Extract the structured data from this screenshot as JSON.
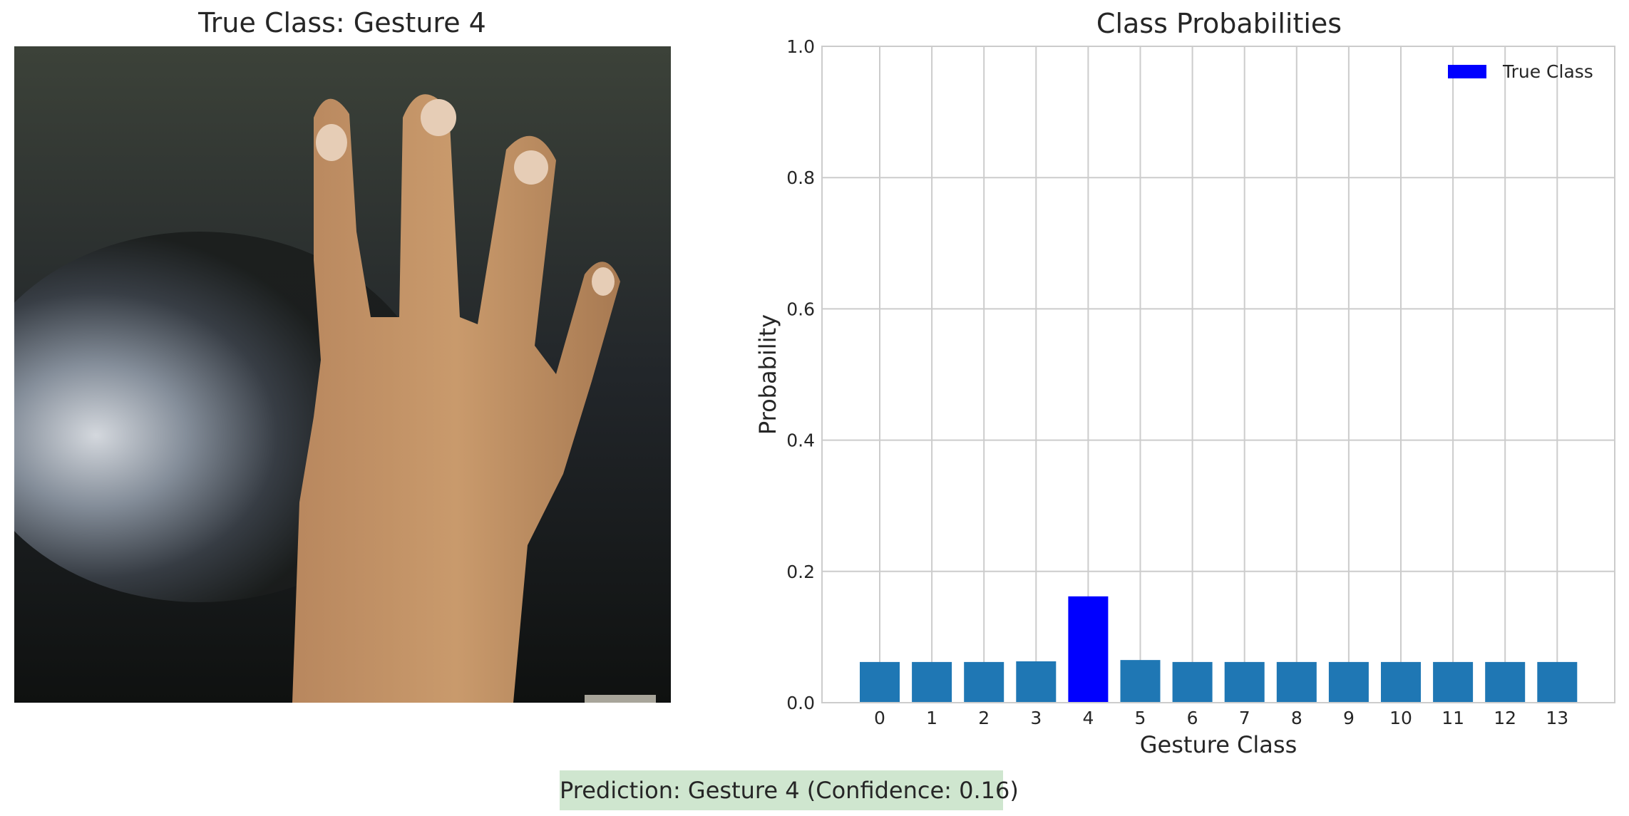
{
  "image_panel": {
    "title": "True Class: Gesture 4",
    "image_description": "photo of a hand with fingers spread on a dark surface"
  },
  "chart_data": {
    "type": "bar",
    "title": "Class Probabilities",
    "xlabel": "Gesture Class",
    "ylabel": "Probability",
    "categories": [
      "0",
      "1",
      "2",
      "3",
      "4",
      "5",
      "6",
      "7",
      "8",
      "9",
      "10",
      "11",
      "12",
      "13"
    ],
    "values": [
      0.062,
      0.062,
      0.062,
      0.063,
      0.162,
      0.065,
      0.062,
      0.062,
      0.062,
      0.062,
      0.062,
      0.062,
      0.062,
      0.062
    ],
    "highlight_index": 4,
    "ylim": [
      0,
      1.0
    ],
    "yticks": [
      "0.0",
      "0.2",
      "0.4",
      "0.6",
      "0.8",
      "1.0"
    ],
    "ytick_values": [
      0,
      0.2,
      0.4,
      0.6,
      0.8,
      1.0
    ],
    "grid": true,
    "legend": {
      "entries": [
        {
          "label": "True Class",
          "color": "#0000ff"
        }
      ],
      "placement": "top-right"
    },
    "colors": {
      "bar": "#1f77b4",
      "highlight": "#0000ff",
      "grid": "#cccccc",
      "axes": "#cccccc"
    }
  },
  "prediction": {
    "text": "Prediction: Gesture 4 (Confidence: 0.16)",
    "background": "#cfe6cf"
  }
}
